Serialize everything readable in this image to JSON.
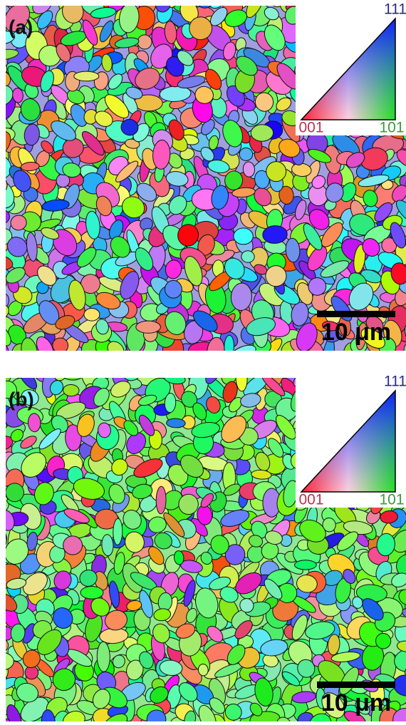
{
  "panels": [
    {
      "label": "(a)",
      "legend": {
        "top": "111",
        "bottom_left": "001",
        "bottom_right": "101"
      },
      "scale_bar": "10 μm"
    },
    {
      "label": "(b)",
      "legend": {
        "top": "111",
        "bottom_left": "001",
        "bottom_right": "101"
      },
      "scale_bar": "10 μm"
    }
  ]
}
